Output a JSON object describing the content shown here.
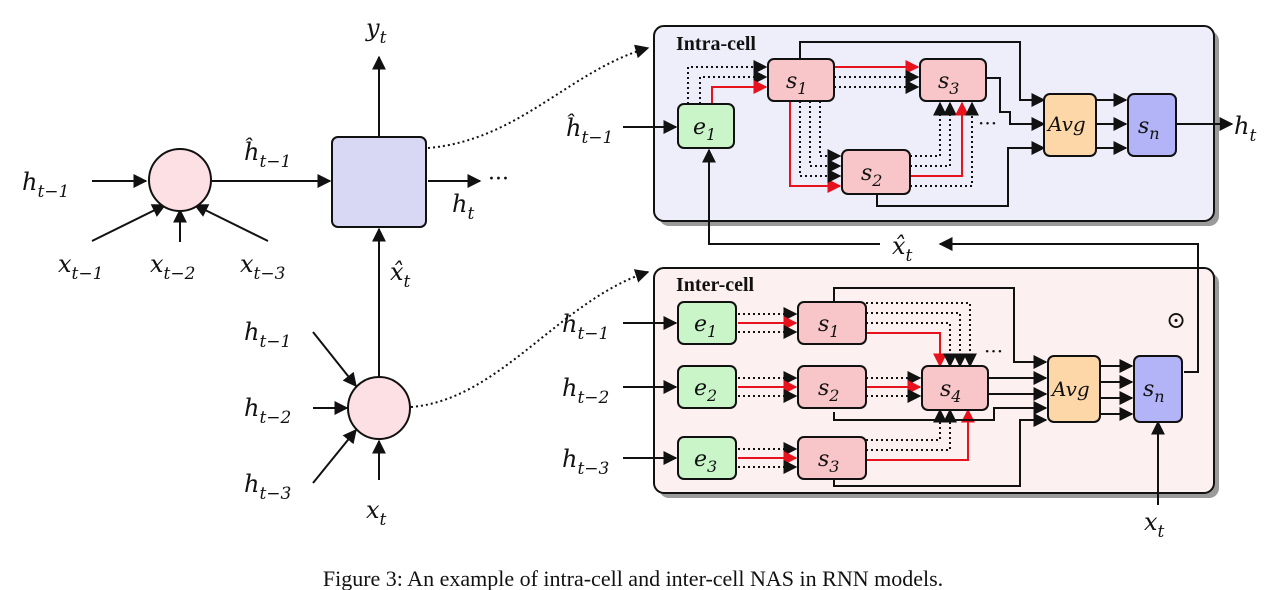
{
  "left_diagram": {
    "inputs_top": [
      "h_{t-1}",
      "x_{t-1}",
      "x_{t-2}",
      "x_{t-3}"
    ],
    "hhat": "ĥ_{t-1}",
    "y": "y_t",
    "h": "h_t",
    "ellipsis": "···",
    "xhat": "x̂_t",
    "inputs_bottom": [
      "h_{t-1}",
      "h_{t-2}",
      "h_{t-3}",
      "x_t"
    ]
  },
  "intra_cell": {
    "title": "Intra-cell",
    "input": "ĥ_{t-1}",
    "embed": "e_1",
    "nodes": [
      "s_1",
      "s_2",
      "s_3"
    ],
    "ellipsis": "···",
    "avg": "Avg",
    "output_node": "s_n",
    "output": "h_t"
  },
  "link_label": "x̂_t",
  "inter_cell": {
    "title": "Inter-cell",
    "inputs": [
      "h_{t-1}",
      "h_{t-2}",
      "h_{t-3}"
    ],
    "embeds": [
      "e_1",
      "e_2",
      "e_3"
    ],
    "nodes": [
      "s_1",
      "s_2",
      "s_3",
      "s_4"
    ],
    "ellipsis": "···",
    "avg": "Avg",
    "output_node": "s_n",
    "hadamard": "⊙",
    "input_x": "x_t"
  },
  "caption": "Figure 3: An example of intra-cell and inter-cell NAS in RNN models.",
  "colors": {
    "intra_bg": "#eeeefb",
    "inter_bg": "#fdf0f0",
    "embed": "#c9f5c9",
    "node": "#f8c6c8",
    "avg": "#fdd7a8",
    "sn": "#b3b3f7",
    "cell_box": "#d8d8f5",
    "circle": "#fde0e3",
    "red_edge": "#e8121c"
  }
}
